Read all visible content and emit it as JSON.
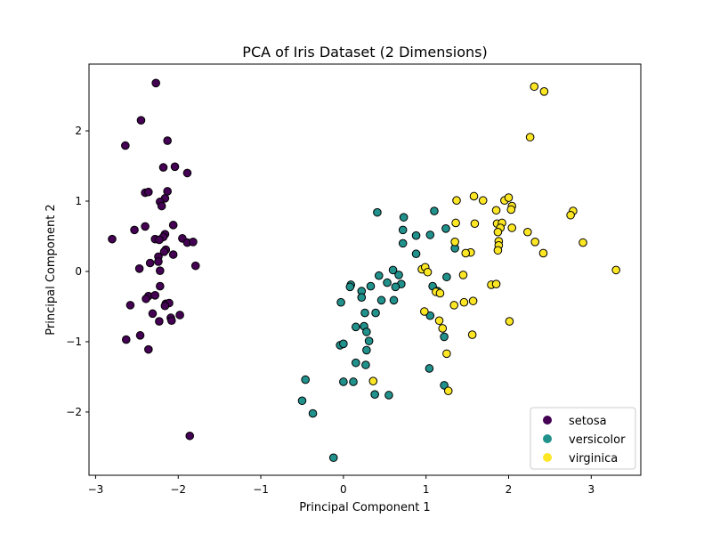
{
  "chart_data": {
    "type": "scatter",
    "title": "PCA of Iris Dataset (2 Dimensions)",
    "xlabel": "Principal Component 1",
    "ylabel": "Principal Component 2",
    "xlim": [
      -3.08,
      3.6
    ],
    "ylim": [
      -2.9,
      2.95
    ],
    "xticks": [
      -3,
      -2,
      -1,
      0,
      1,
      2,
      3
    ],
    "yticks": [
      -2,
      -1,
      0,
      1,
      2
    ],
    "xtick_labels": [
      "−3",
      "−2",
      "−1",
      "0",
      "1",
      "2",
      "3"
    ],
    "ytick_labels": [
      "−2",
      "−1",
      "0",
      "1",
      "2"
    ],
    "grid": false,
    "legend_position": "lower-right",
    "series": [
      {
        "name": "setosa",
        "color": "#440154",
        "points": [
          [
            -2.27,
            2.68
          ],
          [
            -2.45,
            2.15
          ],
          [
            -2.64,
            1.79
          ],
          [
            -2.13,
            1.86
          ],
          [
            -2.18,
            1.48
          ],
          [
            -2.04,
            1.49
          ],
          [
            -1.89,
            1.4
          ],
          [
            -2.4,
            1.12
          ],
          [
            -2.36,
            1.13
          ],
          [
            -2.13,
            1.14
          ],
          [
            -2.16,
            1.04
          ],
          [
            -2.22,
            0.99
          ],
          [
            -2.2,
            0.93
          ],
          [
            -2.4,
            0.64
          ],
          [
            -2.53,
            0.59
          ],
          [
            -2.06,
            0.66
          ],
          [
            -2.8,
            0.46
          ],
          [
            -2.16,
            0.53
          ],
          [
            -2.18,
            0.49
          ],
          [
            -2.28,
            0.46
          ],
          [
            -2.23,
            0.45
          ],
          [
            -1.95,
            0.47
          ],
          [
            -1.89,
            0.41
          ],
          [
            -1.82,
            0.42
          ],
          [
            -2.15,
            0.31
          ],
          [
            -2.17,
            0.28
          ],
          [
            -2.24,
            0.21
          ],
          [
            -2.06,
            0.24
          ],
          [
            -2.24,
            0.14
          ],
          [
            -2.34,
            0.12
          ],
          [
            -2.47,
            0.04
          ],
          [
            -2.22,
            0.01
          ],
          [
            -1.79,
            0.08
          ],
          [
            -2.22,
            -0.21
          ],
          [
            -2.36,
            -0.35
          ],
          [
            -2.39,
            -0.39
          ],
          [
            -2.28,
            -0.34
          ],
          [
            -2.15,
            -0.46
          ],
          [
            -2.11,
            -0.45
          ],
          [
            -2.16,
            -0.49
          ],
          [
            -2.58,
            -0.48
          ],
          [
            -2.31,
            -0.6
          ],
          [
            -1.98,
            -0.62
          ],
          [
            -2.09,
            -0.66
          ],
          [
            -2.08,
            -0.7
          ],
          [
            -2.23,
            -0.71
          ],
          [
            -2.63,
            -0.97
          ],
          [
            -2.46,
            -0.91
          ],
          [
            -2.36,
            -1.11
          ],
          [
            -1.86,
            -2.34
          ]
        ]
      },
      {
        "name": "versicolor",
        "color": "#21918c",
        "points": [
          [
            0.41,
            0.84
          ],
          [
            0.73,
            0.77
          ],
          [
            1.1,
            0.86
          ],
          [
            0.72,
            0.59
          ],
          [
            0.88,
            0.51
          ],
          [
            1.05,
            0.52
          ],
          [
            1.24,
            0.61
          ],
          [
            0.72,
            0.4
          ],
          [
            1.35,
            0.33
          ],
          [
            0.88,
            0.25
          ],
          [
            0.6,
            0.02
          ],
          [
            0.67,
            -0.05
          ],
          [
            0.43,
            -0.06
          ],
          [
            0.53,
            -0.16
          ],
          [
            0.7,
            -0.18
          ],
          [
            0.63,
            -0.22
          ],
          [
            1.08,
            -0.21
          ],
          [
            1.25,
            -0.08
          ],
          [
            1.14,
            -0.28
          ],
          [
            0.09,
            -0.19
          ],
          [
            0.08,
            -0.22
          ],
          [
            0.33,
            -0.21
          ],
          [
            0.22,
            -0.28
          ],
          [
            0.22,
            -0.37
          ],
          [
            -0.03,
            -0.44
          ],
          [
            0.46,
            -0.41
          ],
          [
            0.61,
            -0.41
          ],
          [
            0.26,
            -0.59
          ],
          [
            0.39,
            -0.59
          ],
          [
            1.05,
            -0.63
          ],
          [
            0.15,
            -0.79
          ],
          [
            0.25,
            -0.78
          ],
          [
            0.28,
            -0.86
          ],
          [
            0.31,
            -0.99
          ],
          [
            -0.04,
            -1.05
          ],
          [
            0.0,
            -1.03
          ],
          [
            0.28,
            -1.12
          ],
          [
            0.15,
            -1.3
          ],
          [
            0.27,
            -1.33
          ],
          [
            1.04,
            -1.38
          ],
          [
            1.22,
            -0.93
          ],
          [
            -0.46,
            -1.54
          ],
          [
            0.0,
            -1.57
          ],
          [
            0.12,
            -1.57
          ],
          [
            0.38,
            -1.75
          ],
          [
            0.55,
            -1.76
          ],
          [
            1.22,
            -1.62
          ],
          [
            -0.5,
            -1.84
          ],
          [
            -0.37,
            -2.02
          ],
          [
            -0.12,
            -2.65
          ]
        ]
      },
      {
        "name": "virginica",
        "color": "#fde725",
        "points": [
          [
            2.31,
            2.63
          ],
          [
            2.43,
            2.56
          ],
          [
            2.26,
            1.91
          ],
          [
            1.58,
            1.07
          ],
          [
            1.95,
            1.01
          ],
          [
            1.37,
            1.01
          ],
          [
            1.69,
            1.01
          ],
          [
            2.0,
            1.05
          ],
          [
            2.04,
            0.93
          ],
          [
            2.03,
            0.88
          ],
          [
            1.85,
            0.87
          ],
          [
            2.78,
            0.86
          ],
          [
            2.75,
            0.8
          ],
          [
            1.36,
            0.69
          ],
          [
            1.59,
            0.68
          ],
          [
            1.86,
            0.68
          ],
          [
            1.92,
            0.69
          ],
          [
            1.9,
            0.62
          ],
          [
            2.04,
            0.62
          ],
          [
            2.23,
            0.56
          ],
          [
            1.87,
            0.56
          ],
          [
            1.35,
            0.42
          ],
          [
            1.88,
            0.43
          ],
          [
            2.32,
            0.42
          ],
          [
            2.9,
            0.41
          ],
          [
            1.88,
            0.37
          ],
          [
            1.87,
            0.3
          ],
          [
            1.54,
            0.27
          ],
          [
            1.48,
            0.26
          ],
          [
            2.42,
            0.26
          ],
          [
            0.95,
            0.03
          ],
          [
            0.99,
            0.06
          ],
          [
            1.02,
            -0.01
          ],
          [
            1.45,
            -0.05
          ],
          [
            3.3,
            0.02
          ],
          [
            1.79,
            -0.19
          ],
          [
            1.85,
            -0.18
          ],
          [
            1.12,
            -0.29
          ],
          [
            1.17,
            -0.31
          ],
          [
            1.57,
            -0.42
          ],
          [
            1.46,
            -0.44
          ],
          [
            1.34,
            -0.48
          ],
          [
            0.98,
            -0.57
          ],
          [
            2.01,
            -0.71
          ],
          [
            1.16,
            -0.7
          ],
          [
            1.2,
            -0.81
          ],
          [
            1.56,
            -0.9
          ],
          [
            1.25,
            -1.17
          ],
          [
            0.36,
            -1.56
          ],
          [
            1.27,
            -1.7
          ]
        ]
      }
    ]
  }
}
